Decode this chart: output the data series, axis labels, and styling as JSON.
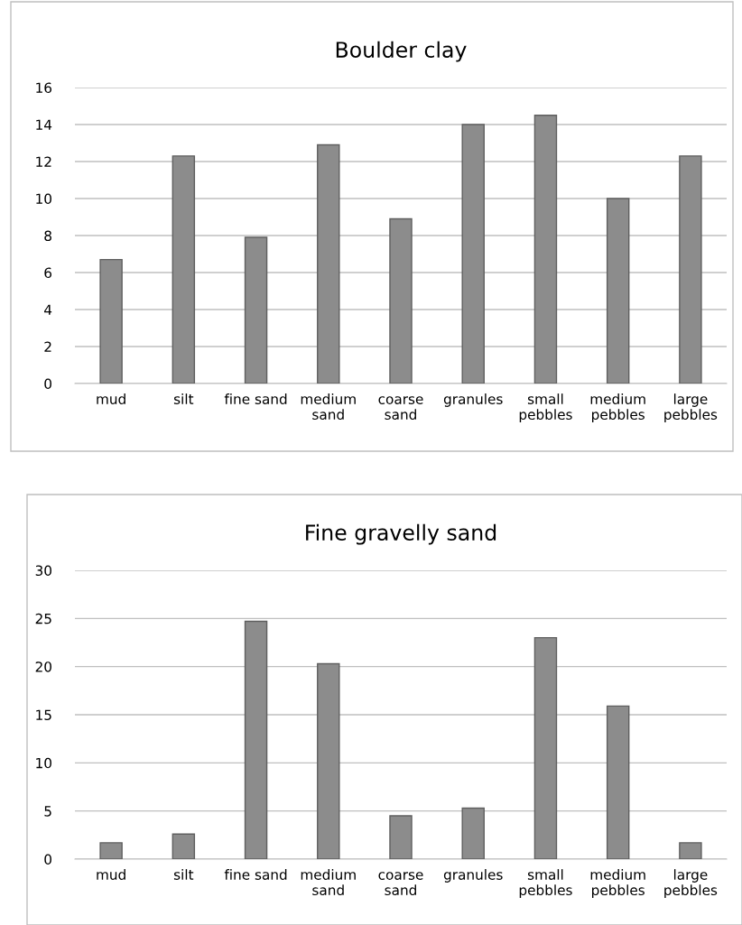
{
  "chart_data": [
    {
      "type": "bar",
      "title": "Boulder clay",
      "categories": [
        "mud",
        "silt",
        "fine sand",
        "medium\nsand",
        "coarse\nsand",
        "granules",
        "small\npebbles",
        "medium\npebbles",
        "large\npebbles"
      ],
      "values": [
        6.7,
        12.3,
        7.9,
        12.9,
        8.9,
        14.0,
        14.5,
        10.0,
        12.3
      ],
      "color": "#8c8c8c",
      "ylim": [
        0,
        16
      ],
      "yticks": [
        0,
        2,
        4,
        6,
        8,
        10,
        12,
        14,
        16
      ],
      "grid": "y"
    },
    {
      "type": "bar",
      "title": "Fine gravelly sand",
      "categories": [
        "mud",
        "silt",
        "fine sand",
        "medium\nsand",
        "coarse\nsand",
        "granules",
        "small\npebbles",
        "medium\npebbles",
        "large\npebbles"
      ],
      "values": [
        1.7,
        2.6,
        24.7,
        20.3,
        4.5,
        5.3,
        23.0,
        15.9,
        1.7
      ],
      "color": "#8c8c8c",
      "ylim": [
        0,
        30
      ],
      "yticks": [
        0,
        5,
        10,
        15,
        20,
        25,
        30
      ],
      "grid": "y"
    }
  ]
}
